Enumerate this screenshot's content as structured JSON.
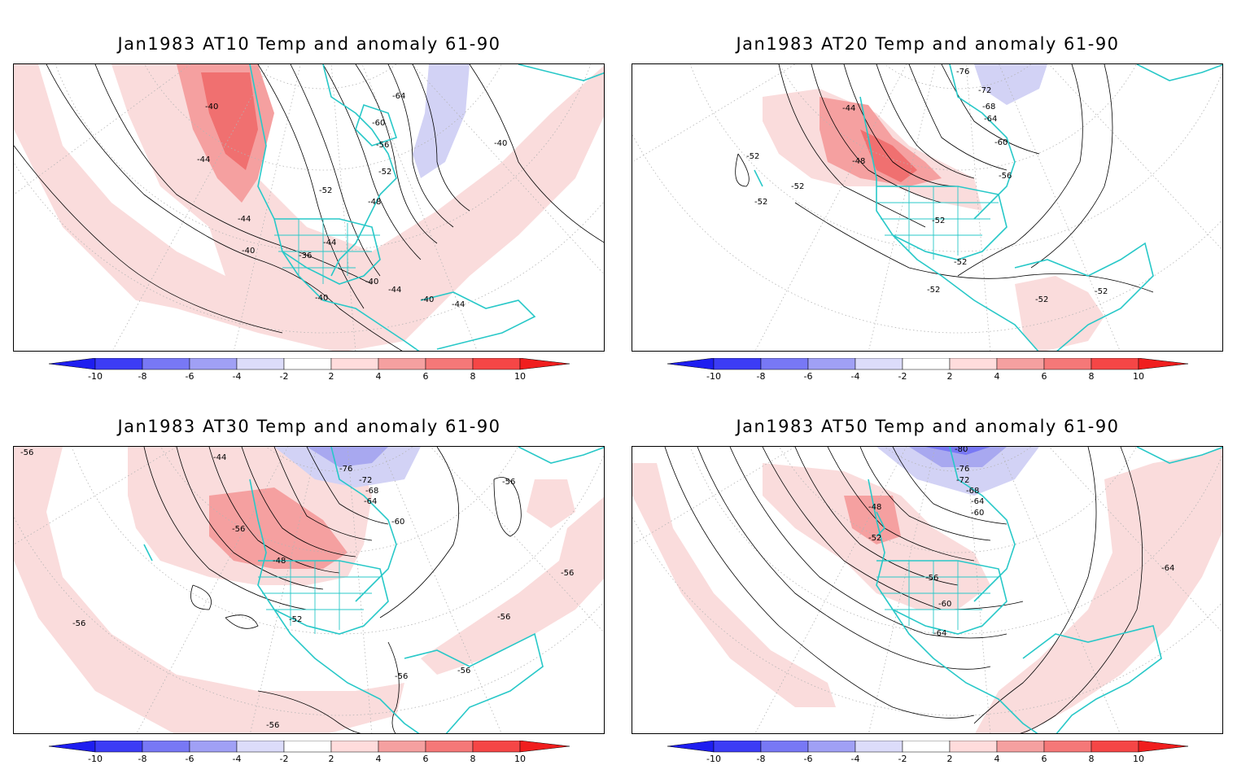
{
  "panels": [
    {
      "id": "at10",
      "title": "Jan1983 AT10 Temp and anomaly 61-90",
      "contour_labels": [
        "-40",
        "-44",
        "-64",
        "-60",
        "-56",
        "-52",
        "-52",
        "-48",
        "-44",
        "-40",
        "-36",
        "-40",
        "-44",
        "-40",
        "-44",
        "-40",
        "-44",
        "-40"
      ]
    },
    {
      "id": "at20",
      "title": "Jan1983 AT20 Temp and anomaly 61-90",
      "contour_labels": [
        "-76",
        "-72",
        "-68",
        "-64",
        "-60",
        "-56",
        "-44",
        "-48",
        "-52",
        "-52",
        "-52",
        "-52",
        "-52",
        "-52",
        "-52",
        "-52"
      ]
    },
    {
      "id": "at30",
      "title": "Jan1983 AT30 Temp and anomaly 61-90",
      "contour_labels": [
        "-56",
        "-44",
        "-76",
        "-72",
        "-68",
        "-64",
        "-60",
        "-56",
        "-48",
        "-52",
        "-56",
        "-56",
        "-56",
        "-56",
        "-56",
        "-56",
        "-56"
      ]
    },
    {
      "id": "at50",
      "title": "Jan1983 AT50 Temp and anomaly 61-90",
      "contour_labels": [
        "-80",
        "-76",
        "-72",
        "-68",
        "-64",
        "-60",
        "-48",
        "-52",
        "-56",
        "-60",
        "-64",
        "-64"
      ]
    }
  ],
  "colorbar": {
    "ticks": [
      "-10",
      "-8",
      "-6",
      "-4",
      "-2",
      "2",
      "4",
      "6",
      "8",
      "10"
    ],
    "colors": [
      "#1e1ef0",
      "#3c3cf5",
      "#7878f5",
      "#a0a0f5",
      "#dcdcfa",
      "#ffffff",
      "#ffdcdc",
      "#f5a0a0",
      "#f57878",
      "#f54646",
      "#f01e1e"
    ]
  },
  "colors": {
    "warm_anomaly": "#fadcdc",
    "warm_anomaly_mid": "#f5a0a0",
    "warm_anomaly_strong": "#f07070",
    "cold_anomaly": "#d2d2f5",
    "cold_anomaly_mid": "#a8a8f0",
    "coastline": "#28c8c8"
  }
}
